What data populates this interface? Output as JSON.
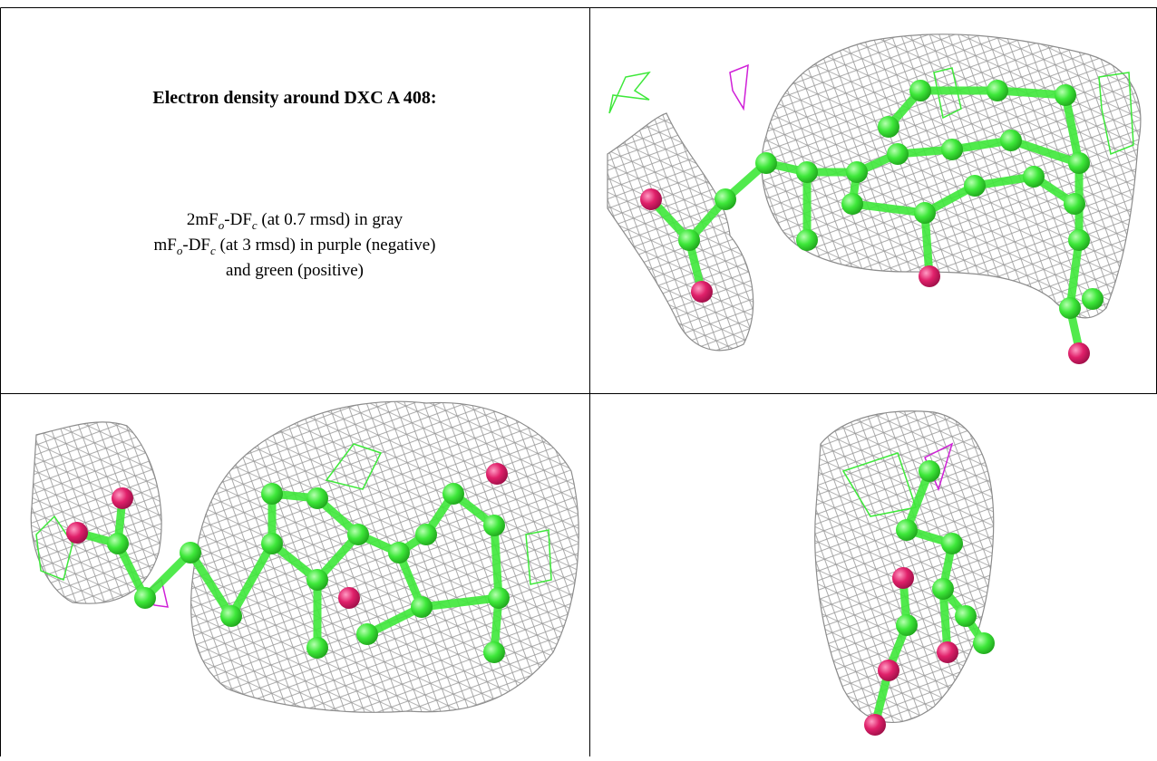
{
  "caption": {
    "title": "Electron density around DXC A 408:",
    "lines": [
      [
        "2mF",
        "o",
        "-DF",
        "c",
        " (at 0.7 rmsd) in gray"
      ],
      [
        "mF",
        "o",
        "-DF",
        "c",
        " (at 3 rmsd) in purple (negative)"
      ],
      [
        "and green (positive)"
      ]
    ]
  }
}
